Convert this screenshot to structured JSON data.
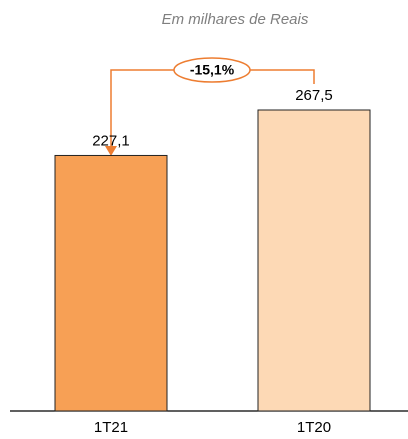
{
  "chart_data": {
    "type": "bar",
    "subtitle": "Em milhares de Reais",
    "categories": [
      "1T21",
      "1T20"
    ],
    "values": [
      227.1,
      267.5
    ],
    "value_labels": [
      "227,1",
      "267,5"
    ],
    "colors": [
      "#f7a055",
      "#fdd9b5"
    ],
    "annotation": "-15,1%"
  }
}
